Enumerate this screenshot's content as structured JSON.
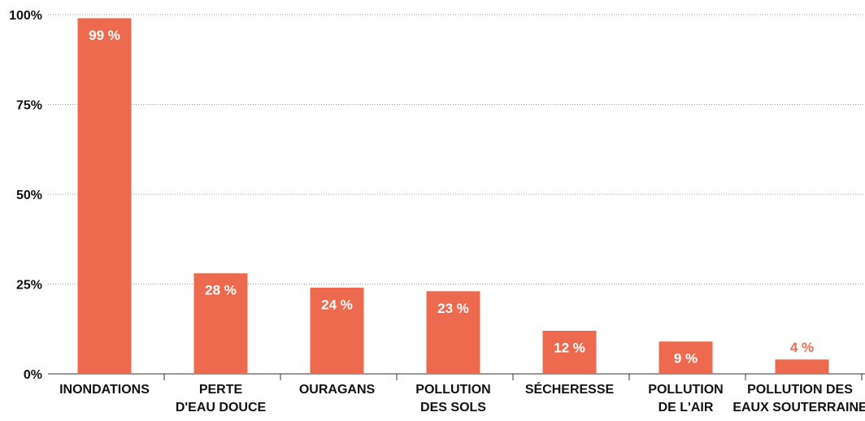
{
  "chart_data": {
    "type": "bar",
    "categories": [
      [
        "INONDATIONS"
      ],
      [
        "PERTE",
        "D'EAU DOUCE"
      ],
      [
        "OURAGANS"
      ],
      [
        "POLLUTION",
        "DES SOLS"
      ],
      [
        "SÉCHERESSE"
      ],
      [
        "POLLUTION",
        "DE L'AIR"
      ],
      [
        "POLLUTION DES",
        "EAUX SOUTERRAINE"
      ]
    ],
    "values": [
      99,
      28,
      24,
      23,
      12,
      9,
      4
    ],
    "value_labels": [
      "99 %",
      "28 %",
      "24 %",
      "23 %",
      "12 %",
      "9 %",
      "4 %"
    ],
    "color": "#ee6a4f",
    "ylim": [
      0,
      100
    ],
    "yticks": [
      {
        "value": 0,
        "label": "0%"
      },
      {
        "value": 25,
        "label": "25%"
      },
      {
        "value": 50,
        "label": "50%"
      },
      {
        "value": 75,
        "label": "75%"
      },
      {
        "value": 100,
        "label": "100%"
      }
    ],
    "grid": true
  }
}
